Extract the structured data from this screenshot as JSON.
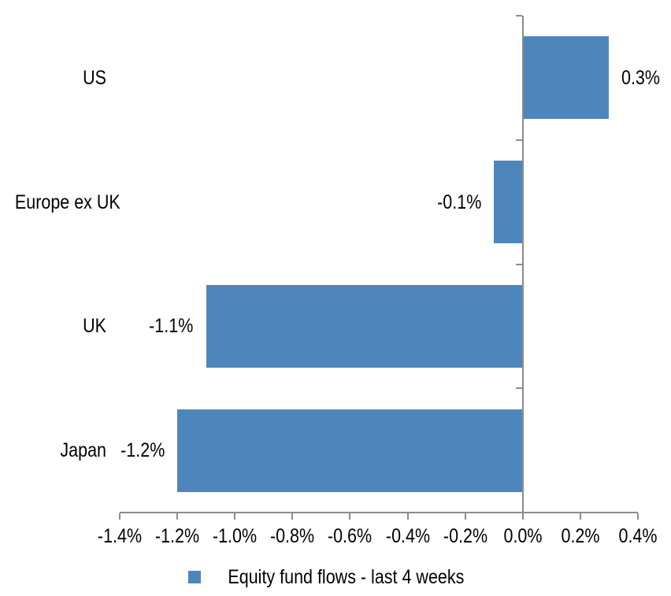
{
  "chart_data": {
    "type": "bar",
    "orientation": "horizontal",
    "title": "",
    "categories": [
      "US",
      "Europe ex UK",
      "UK",
      "Japan"
    ],
    "series": [
      {
        "name": "Equity fund flows - last 4 weeks",
        "values": [
          0.3,
          -0.1,
          -1.1,
          -1.2
        ],
        "unit": "%"
      }
    ],
    "data_labels": [
      "0.3%",
      "-0.1%",
      "-1.1%",
      "-1.2%"
    ],
    "x_axis": {
      "min": -1.4,
      "max": 0.4,
      "step": 0.2,
      "tick_labels": [
        "-1.4%",
        "-1.2%",
        "-1.0%",
        "-0.8%",
        "-0.6%",
        "-0.4%",
        "-0.2%",
        "0.0%",
        "0.2%",
        "0.4%"
      ]
    },
    "grid": false,
    "legend": {
      "position": "bottom",
      "label": "Equity fund flows - last 4 weeks",
      "marker_color": "#4E86BC"
    },
    "colors": {
      "bar": "#4E86BC",
      "axis": "#8C8C8C",
      "text": "#000000",
      "background": "#FFFFFF"
    }
  }
}
